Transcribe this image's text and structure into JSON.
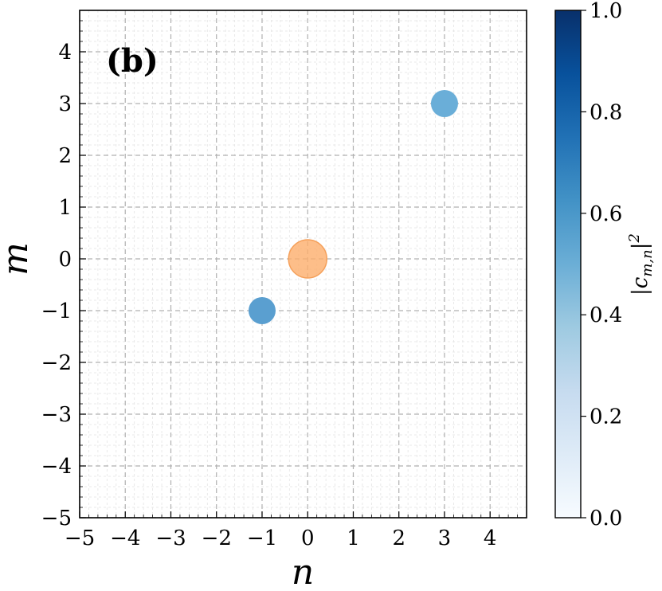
{
  "chart_data": {
    "type": "scatter",
    "panel_label": "(b)",
    "xlabel": "n",
    "ylabel": "m",
    "xlim": [
      -5,
      4.8
    ],
    "ylim": [
      -5,
      4.8
    ],
    "xticks": [
      -5,
      -4,
      -3,
      -2,
      -1,
      0,
      1,
      2,
      3,
      4
    ],
    "yticks": [
      -5,
      -4,
      -3,
      -2,
      -1,
      0,
      1,
      2,
      3,
      4
    ],
    "x_tick_labels": [
      "−5",
      "−4",
      "−3",
      "−2",
      "−1",
      "0",
      "1",
      "2",
      "3",
      "4"
    ],
    "y_tick_labels": [
      "−5",
      "−4",
      "−3",
      "−2",
      "−1",
      "0",
      "1",
      "2",
      "3",
      "4"
    ],
    "grid": true,
    "minor_grid": true,
    "points": [
      {
        "n": -1,
        "m": -1,
        "value": 0.55,
        "color": "#5a9fd0"
      },
      {
        "n": 3,
        "m": 3,
        "value": 0.45,
        "color": "#6aaed8"
      },
      {
        "n": 0,
        "m": 0,
        "value": null,
        "color": "#fdae6b"
      }
    ],
    "colorbar": {
      "label": "|c_{m,n}|^2",
      "label_main": "|c",
      "label_sub": "m,n",
      "label_tail": "|",
      "label_sup": "2",
      "range": [
        0,
        1
      ],
      "ticks": [
        0.0,
        0.2,
        0.4,
        0.6,
        0.8,
        1.0
      ],
      "tick_labels": [
        "0.0",
        "0.2",
        "0.4",
        "0.6",
        "0.8",
        "1.0"
      ],
      "colormap": "Blues",
      "color_low": "#f7fbff",
      "color_mid": "#6baed6",
      "color_high": "#08306b"
    }
  }
}
